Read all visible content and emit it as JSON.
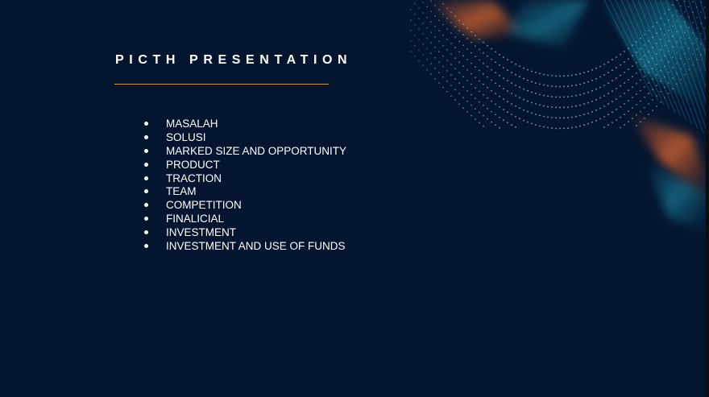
{
  "slide": {
    "title": "PICTH PRESENTATION",
    "accent_color": "#c79a4f",
    "background_color": "#041530",
    "topics": [
      "MASALAH",
      "SOLUSI",
      "MARKED SIZE AND OPPORTUNITY",
      "PRODUCT",
      "TRACTION",
      "TEAM",
      "COMPETITION",
      "FINALICIAL",
      "INVESTMENT",
      "INVESTMENT AND USE OF FUNDS"
    ]
  }
}
